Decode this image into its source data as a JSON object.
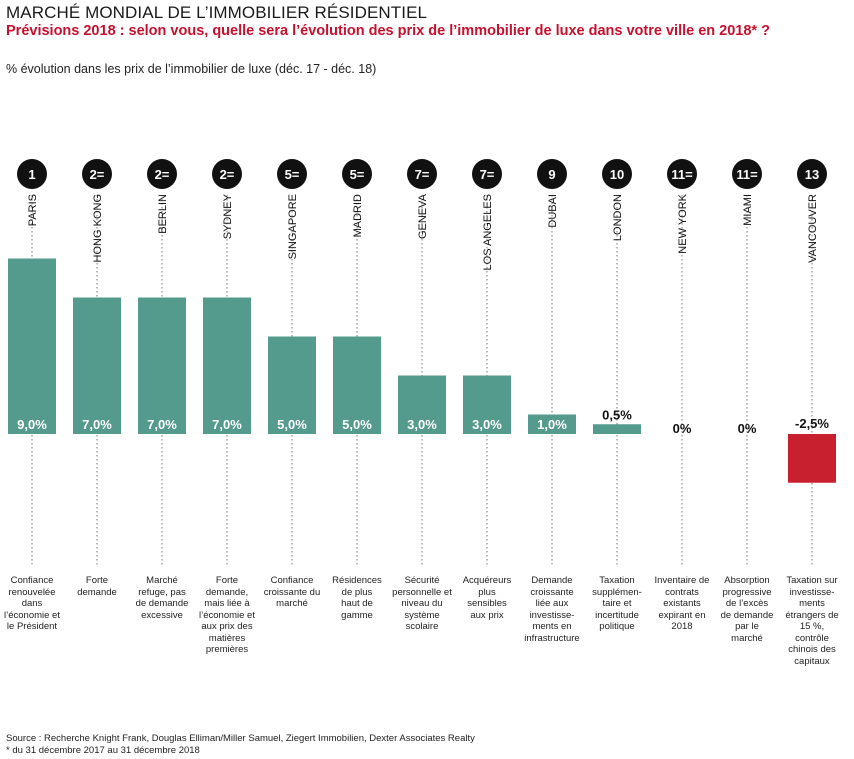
{
  "title": "MARCHÉ MONDIAL DE L’IMMOBILIER RÉSIDENTIEL",
  "subtitle": "Prévisions 2018 : selon vous, quelle sera l’évolution des prix de l’immobilier de luxe dans votre ville en 2018* ?",
  "ylabel": "% évolution dans les prix de l’immobilier de luxe (déc. 17 - déc. 18)",
  "source": "Source : Recherche Knight Frank, Douglas Elliman/Miller Samuel, Ziegert Immobilien, Dexter Associates Realty",
  "footnote": "* du 31 décembre 2017 au 31 décembre 2018",
  "colors": {
    "positive": "#559b8d",
    "negative": "#c8202f",
    "rank_bg": "#111111"
  },
  "chart_data": {
    "type": "bar",
    "categories": [
      "PARIS",
      "HONG KONG",
      "BERLIN",
      "SYDNEY",
      "SINGAPORE",
      "MADRID",
      "GENEVA",
      "LOS ANGELES",
      "DUBAI",
      "LONDON",
      "NEW YORK",
      "MIAMI",
      "VANCOUVER"
    ],
    "values": [
      9.0,
      7.0,
      7.0,
      7.0,
      5.0,
      5.0,
      3.0,
      3.0,
      1.0,
      0.5,
      0,
      0,
      -2.5
    ],
    "value_labels": [
      "9,0%",
      "7,0%",
      "7,0%",
      "7,0%",
      "5,0%",
      "5,0%",
      "3,0%",
      "3,0%",
      "1,0%",
      "0,5%",
      "0%",
      "0%",
      "-2,5%"
    ],
    "ranks": [
      "1",
      "2=",
      "2=",
      "2=",
      "5=",
      "5=",
      "7=",
      "7=",
      "9",
      "10",
      "11=",
      "11=",
      "13"
    ],
    "descriptions": [
      [
        "Confiance",
        "renouvelée",
        "dans",
        "l’économie et",
        "le Président"
      ],
      [
        "Forte",
        "demande"
      ],
      [
        "Marché",
        "refuge, pas",
        "de demande",
        "excessive"
      ],
      [
        "Forte",
        "demande,",
        "mais liée à",
        "l’économie et",
        "aux prix des",
        "matières",
        "premières"
      ],
      [
        "Confiance",
        "croissante du",
        "marché"
      ],
      [
        "Résidences",
        "de plus",
        "haut de",
        "gamme"
      ],
      [
        "Sécurité",
        "personnelle et",
        "niveau du",
        "système",
        "scolaire"
      ],
      [
        "Acquéreurs",
        "plus",
        "sensibles",
        "aux prix"
      ],
      [
        "Demande",
        "croissante",
        "liée aux",
        "investisse-",
        "ments en",
        "infrastructure"
      ],
      [
        "Taxation",
        "supplémen-",
        "taire et",
        "incertitude",
        "politique"
      ],
      [
        "Inventaire de",
        "contrats",
        "existants",
        "expirant en",
        "2018"
      ],
      [
        "Absorption",
        "progressive",
        "de l’excès",
        "de demande",
        "par le",
        "marché"
      ],
      [
        "Taxation sur",
        "investisse-",
        "ments",
        "étrangers de",
        "15 %,",
        "contrôle",
        "chinois des",
        "capitaux"
      ]
    ],
    "ylim": [
      -2.5,
      9.0
    ],
    "grid": false,
    "legend": "none"
  }
}
